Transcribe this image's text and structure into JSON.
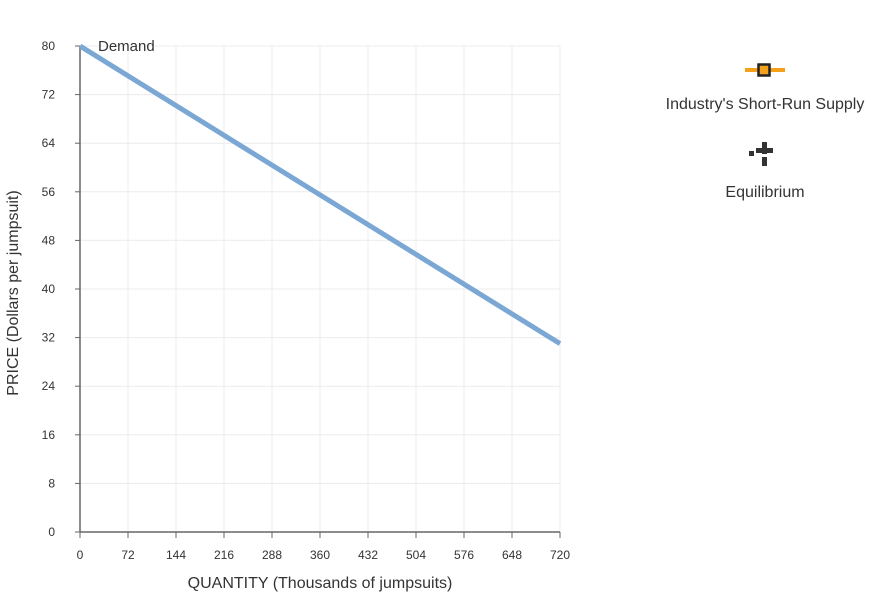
{
  "chart_data": {
    "type": "line",
    "xlabel": "QUANTITY (Thousands of jumpsuits)",
    "ylabel": "PRICE (Dollars per jumpsuit)",
    "xlim": [
      0,
      720
    ],
    "ylim": [
      0,
      80
    ],
    "x_ticks": [
      0,
      72,
      144,
      216,
      288,
      360,
      432,
      504,
      576,
      648,
      720
    ],
    "y_ticks": [
      0,
      8,
      16,
      24,
      32,
      40,
      48,
      56,
      64,
      72,
      80
    ],
    "grid": true,
    "series": [
      {
        "name": "Demand",
        "color": "#7ba7d4",
        "points": [
          [
            0,
            80
          ],
          [
            720,
            31
          ]
        ]
      }
    ]
  },
  "legend": {
    "items": [
      {
        "label": "Industry's Short-Run Supply",
        "icon": "orange-square-marker-icon",
        "color": "#f5a01a"
      },
      {
        "label": "Equilibrium",
        "icon": "cross-marker-icon",
        "color": "#333333"
      }
    ]
  }
}
